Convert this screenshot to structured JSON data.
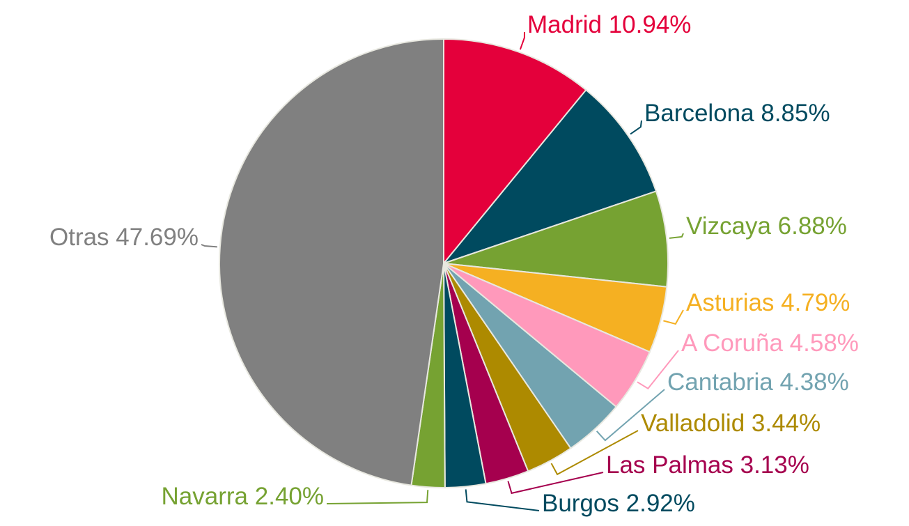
{
  "chart_data": {
    "type": "pie",
    "categories": [
      "Madrid",
      "Barcelona",
      "Vizcaya",
      "Asturias",
      "A Coruña",
      "Cantabria",
      "Valladolid",
      "Las Palmas",
      "Burgos",
      "Navarra",
      "Otras"
    ],
    "values": [
      10.94,
      8.85,
      6.88,
      4.79,
      4.58,
      4.38,
      3.44,
      3.13,
      2.92,
      2.4,
      47.69
    ],
    "value_labels": [
      "10.94%",
      "8.85%",
      "6.88%",
      "4.79%",
      "4.58%",
      "4.38%",
      "3.44%",
      "3.13%",
      "2.92%",
      "2.40%",
      "47.69%"
    ],
    "colors": [
      "#e4003b",
      "#004a5f",
      "#76a232",
      "#f5b022",
      "#ff99bb",
      "#72a3b0",
      "#ad8a00",
      "#a5004e",
      "#004a5f",
      "#76a232",
      "#808080"
    ]
  }
}
